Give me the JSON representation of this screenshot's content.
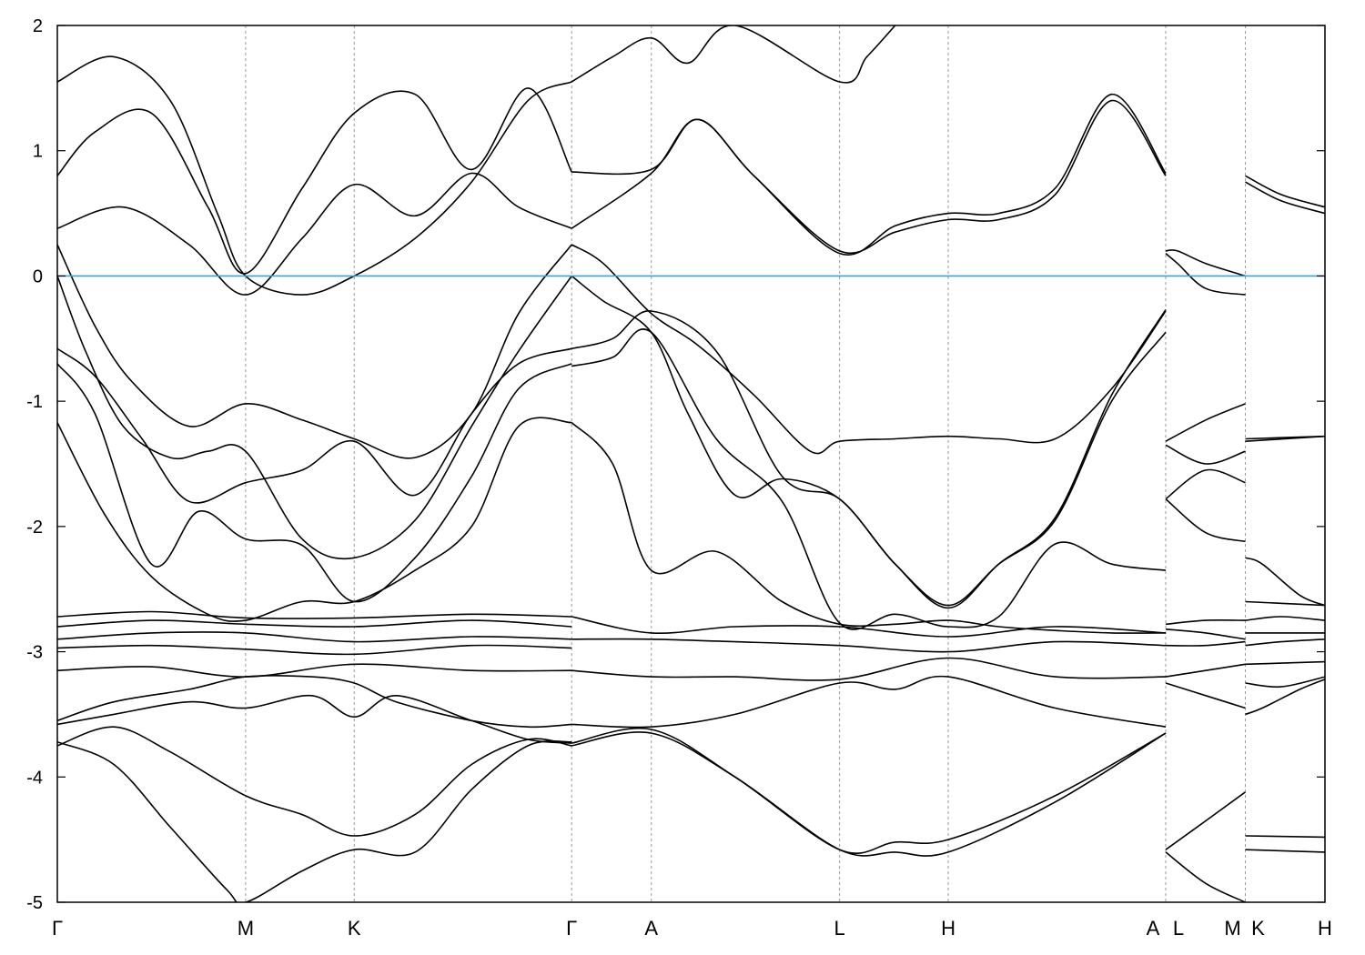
{
  "chart_data": {
    "type": "line",
    "title": "",
    "xlabel": "",
    "ylabel": "",
    "ylim": [
      -5,
      2
    ],
    "yticks": [
      2,
      1,
      0,
      -1,
      -2,
      -3,
      -4,
      -5
    ],
    "grid": "vertical dashed lines at high-symmetry points",
    "fermi_level": 0,
    "fermi_color": "#3aa6c9",
    "band_color": "#000000",
    "x_points": [
      {
        "label": "Γ",
        "x": 0
      },
      {
        "label": "M",
        "x": 1.0
      },
      {
        "label": "K",
        "x": 1.577
      },
      {
        "label": "Γ",
        "x": 2.732
      },
      {
        "label": "A",
        "x": 3.155
      },
      {
        "label": "L",
        "x": 4.155
      },
      {
        "label": "H",
        "x": 4.732
      },
      {
        "label": "A",
        "x": 5.887
      },
      {
        "label": "L",
        "x": 5.887
      },
      {
        "label": "M",
        "x": 6.31
      },
      {
        "label": "K",
        "x": 6.31
      },
      {
        "label": "H",
        "x": 6.733
      }
    ],
    "x_tick_labels": [
      "Γ",
      "M",
      "K",
      "Γ",
      "A",
      "L",
      "H",
      "A",
      "L",
      "M",
      "K",
      "H"
    ],
    "series": [
      {
        "x": [
          0,
          0.3,
          0.6,
          0.85,
          1.0,
          1.3,
          1.577,
          1.9,
          2.2,
          2.5,
          2.732
        ],
        "values": [
          1.55,
          1.75,
          1.4,
          0.5,
          0.0,
          -0.15,
          0.0,
          0.3,
          0.75,
          1.4,
          1.55
        ]
      },
      {
        "x": [
          0,
          0.2,
          0.5,
          0.8,
          1.0,
          1.3,
          1.577,
          1.9,
          2.2,
          2.5,
          2.732
        ],
        "values": [
          0.8,
          1.15,
          1.3,
          0.55,
          0.02,
          0.7,
          1.3,
          1.45,
          0.85,
          1.5,
          0.83
        ]
      },
      {
        "x": [
          0,
          0.35,
          0.7,
          1.0,
          1.3,
          1.577,
          1.9,
          2.2,
          2.45,
          2.732
        ],
        "values": [
          0.38,
          0.55,
          0.25,
          -0.15,
          0.3,
          0.73,
          0.48,
          0.82,
          0.55,
          0.38
        ]
      },
      {
        "x": [
          0,
          0.2,
          0.4,
          0.7,
          1.0,
          1.3,
          1.577,
          1.9,
          2.2,
          2.45,
          2.732
        ],
        "values": [
          0.25,
          -0.4,
          -0.85,
          -1.2,
          -1.02,
          -1.15,
          -1.3,
          -1.45,
          -1.1,
          -0.3,
          0.25
        ]
      },
      {
        "x": [
          0,
          0.15,
          0.35,
          0.6,
          0.8,
          1.0,
          1.3,
          1.577,
          1.9,
          2.2,
          2.45,
          2.732
        ],
        "values": [
          0.0,
          -0.6,
          -1.2,
          -1.45,
          -1.4,
          -1.4,
          -2.1,
          -2.25,
          -1.95,
          -1.2,
          -0.6,
          0.0
        ]
      },
      {
        "x": [
          0,
          0.2,
          0.45,
          0.7,
          1.0,
          1.3,
          1.577,
          1.9,
          2.2,
          2.45,
          2.732
        ],
        "values": [
          -0.58,
          -0.8,
          -1.3,
          -1.8,
          -1.65,
          -1.55,
          -1.32,
          -1.75,
          -1.1,
          -0.7,
          -0.58
        ]
      },
      {
        "x": [
          0,
          0.2,
          0.5,
          0.75,
          1.0,
          1.3,
          1.577,
          1.9,
          2.2,
          2.45,
          2.732
        ],
        "values": [
          -0.7,
          -1.1,
          -2.3,
          -1.88,
          -2.1,
          -2.15,
          -2.6,
          -2.25,
          -1.6,
          -0.9,
          -0.7
        ]
      },
      {
        "x": [
          0,
          0.25,
          0.5,
          0.8,
          1.0,
          1.3,
          1.577,
          1.9,
          2.2,
          2.45,
          2.732
        ],
        "values": [
          -1.17,
          -1.9,
          -2.4,
          -2.7,
          -2.75,
          -2.6,
          -2.6,
          -2.35,
          -2.0,
          -1.2,
          -1.17
        ]
      },
      {
        "x": [
          0,
          0.5,
          1.0,
          1.577,
          2.2,
          2.732
        ],
        "values": [
          -2.72,
          -2.68,
          -2.73,
          -2.73,
          -2.7,
          -2.72
        ]
      },
      {
        "x": [
          0,
          0.5,
          1.0,
          1.577,
          2.2,
          2.732
        ],
        "values": [
          -2.8,
          -2.75,
          -2.78,
          -2.8,
          -2.75,
          -2.8
        ]
      },
      {
        "x": [
          0,
          0.5,
          1.0,
          1.577,
          2.2,
          2.732
        ],
        "values": [
          -2.9,
          -2.85,
          -2.85,
          -2.92,
          -2.88,
          -2.9
        ]
      },
      {
        "x": [
          0,
          0.5,
          1.0,
          1.577,
          2.2,
          2.732
        ],
        "values": [
          -2.97,
          -2.95,
          -2.98,
          -3.02,
          -2.95,
          -2.97
        ]
      },
      {
        "x": [
          0,
          0.5,
          1.0,
          1.577,
          2.2,
          2.732
        ],
        "values": [
          -3.15,
          -3.12,
          -3.2,
          -3.1,
          -3.15,
          -3.15
        ]
      },
      {
        "x": [
          0,
          0.3,
          0.7,
          1.0,
          1.35,
          1.577,
          1.8,
          2.2,
          2.5,
          2.732
        ],
        "values": [
          -3.55,
          -3.4,
          -3.3,
          -3.2,
          -3.2,
          -3.25,
          -3.4,
          -3.55,
          -3.6,
          -3.58
        ]
      },
      {
        "x": [
          0,
          0.3,
          0.7,
          1.0,
          1.35,
          1.577,
          1.8,
          2.2,
          2.5,
          2.732
        ],
        "values": [
          -3.58,
          -3.5,
          -3.4,
          -3.45,
          -3.35,
          -3.52,
          -3.35,
          -3.55,
          -3.7,
          -3.73
        ]
      },
      {
        "x": [
          0,
          0.3,
          0.6,
          1.0,
          1.3,
          1.577,
          1.9,
          2.2,
          2.5,
          2.732
        ],
        "values": [
          -3.75,
          -3.6,
          -3.8,
          -4.15,
          -4.3,
          -4.47,
          -4.3,
          -3.9,
          -3.7,
          -3.75
        ]
      },
      {
        "x": [
          0,
          0.3,
          0.6,
          0.9,
          1.0,
          1.3,
          1.577,
          1.9,
          2.2,
          2.5,
          2.732
        ],
        "values": [
          -3.72,
          -3.9,
          -4.4,
          -4.9,
          -5.0,
          -4.75,
          -4.58,
          -4.6,
          -4.1,
          -3.75,
          -3.72
        ]
      },
      {
        "x": [
          2.732,
          2.9,
          3.155,
          3.4,
          3.7,
          4.0,
          4.155,
          4.45,
          4.732,
          5.0,
          5.3,
          5.6,
          5.887
        ],
        "values": [
          0.25,
          0.1,
          -0.3,
          -0.55,
          -0.95,
          -1.4,
          -1.32,
          -1.3,
          -1.28,
          -1.3,
          -1.3,
          -0.9,
          -0.28
        ]
      },
      {
        "x": [
          2.732,
          2.9,
          3.155,
          3.35,
          3.6,
          3.85,
          4.155,
          4.45,
          4.732,
          5.0,
          5.3,
          5.6,
          5.887
        ],
        "values": [
          0.0,
          -0.2,
          -0.45,
          -1.1,
          -1.75,
          -1.62,
          -1.78,
          -2.3,
          -2.63,
          -2.3,
          -1.95,
          -1.0,
          -0.45
        ]
      },
      {
        "x": [
          2.732,
          2.95,
          3.155,
          3.5,
          3.85,
          4.155,
          4.45,
          4.732,
          5.0,
          5.3,
          5.6,
          5.887
        ],
        "values": [
          -0.58,
          -0.5,
          -0.28,
          -0.6,
          -1.6,
          -1.78,
          -2.3,
          -2.65,
          -2.3,
          -1.93,
          -0.95,
          -0.27
        ]
      },
      {
        "x": [
          2.732,
          2.95,
          3.155,
          3.5,
          3.85,
          4.155,
          4.45,
          4.732,
          5.0,
          5.3,
          5.6,
          5.887
        ],
        "values": [
          -0.72,
          -0.65,
          -0.45,
          -1.3,
          -1.8,
          -2.77,
          -2.7,
          -2.8,
          -2.72,
          -2.14,
          -2.3,
          -2.35
        ]
      },
      {
        "x": [
          2.732,
          2.95,
          3.155,
          3.5,
          3.85,
          4.155,
          4.45,
          4.732,
          5.0,
          5.3,
          5.6,
          5.887
        ],
        "values": [
          -1.17,
          -1.5,
          -2.35,
          -2.2,
          -2.6,
          -2.78,
          -2.78,
          -2.75,
          -2.8,
          -2.83,
          -2.85,
          -2.85
        ]
      },
      {
        "x": [
          2.732,
          3.155,
          3.6,
          4.155,
          4.732,
          5.3,
          5.887
        ],
        "values": [
          -2.72,
          -2.85,
          -2.8,
          -2.8,
          -2.88,
          -2.8,
          -2.85
        ]
      },
      {
        "x": [
          2.732,
          3.155,
          3.6,
          4.155,
          4.732,
          5.3,
          5.887
        ],
        "values": [
          -2.9,
          -2.9,
          -2.92,
          -2.95,
          -3.0,
          -2.92,
          -2.95
        ]
      },
      {
        "x": [
          2.732,
          3.155,
          3.6,
          4.155,
          4.732,
          5.3,
          5.887
        ],
        "values": [
          -3.15,
          -3.2,
          -3.2,
          -3.22,
          -3.05,
          -3.2,
          -3.2
        ]
      },
      {
        "x": [
          2.732,
          3.155,
          3.6,
          4.155,
          4.45,
          4.732,
          5.3,
          5.887
        ],
        "values": [
          -3.58,
          -3.6,
          -3.5,
          -3.25,
          -3.3,
          -3.2,
          -3.45,
          -3.6
        ]
      },
      {
        "x": [
          2.732,
          3.155,
          3.6,
          4.155,
          4.45,
          4.732,
          5.3,
          5.887
        ],
        "values": [
          -3.73,
          -3.62,
          -4.0,
          -4.58,
          -4.52,
          -4.5,
          -4.15,
          -3.65
        ]
      },
      {
        "x": [
          2.732,
          3.155,
          3.6,
          4.155,
          4.45,
          4.732,
          5.3,
          5.887
        ],
        "values": [
          -3.75,
          -3.65,
          -4.0,
          -4.58,
          -4.6,
          -4.6,
          -4.2,
          -3.65
        ]
      },
      {
        "x": [
          2.732,
          3.155,
          3.4,
          3.7,
          4.155,
          4.45,
          4.732,
          5.0,
          5.3,
          5.6,
          5.887
        ],
        "values": [
          0.38,
          0.82,
          1.25,
          0.8,
          0.2,
          0.35,
          0.45,
          0.45,
          0.65,
          1.4,
          0.8
        ]
      },
      {
        "x": [
          2.732,
          3.155,
          3.4,
          3.7,
          4.155,
          4.45,
          4.732,
          5.0,
          5.3,
          5.6,
          5.887
        ],
        "values": [
          0.83,
          0.85,
          1.25,
          0.8,
          0.18,
          0.4,
          0.5,
          0.5,
          0.7,
          1.45,
          0.82
        ]
      },
      {
        "x": [
          2.732,
          2.95,
          3.155,
          3.35,
          3.6,
          4.155,
          4.3,
          4.45
        ],
        "values": [
          1.55,
          1.75,
          1.9,
          1.7,
          2.0,
          1.55,
          1.75,
          2.0
        ]
      },
      {
        "x": [
          5.887,
          5.95,
          6.1,
          6.31
        ],
        "values": [
          0.2,
          0.2,
          0.1,
          0.0
        ]
      },
      {
        "x": [
          5.887,
          5.95,
          6.1,
          6.31
        ],
        "values": [
          0.18,
          0.1,
          -0.1,
          -0.15
        ]
      },
      {
        "x": [
          5.887,
          6.1,
          6.31
        ],
        "values": [
          -1.32,
          -1.15,
          -1.02
        ]
      },
      {
        "x": [
          5.887,
          6.1,
          6.31
        ],
        "values": [
          -1.35,
          -1.5,
          -1.4
        ]
      },
      {
        "x": [
          5.887,
          6.1,
          6.31
        ],
        "values": [
          -1.78,
          -1.55,
          -1.65
        ]
      },
      {
        "x": [
          5.887,
          6.1,
          6.31
        ],
        "values": [
          -1.78,
          -2.05,
          -2.12
        ]
      },
      {
        "x": [
          5.887,
          6.1,
          6.31
        ],
        "values": [
          -2.78,
          -2.75,
          -2.75
        ]
      },
      {
        "x": [
          5.887,
          6.1,
          6.31
        ],
        "values": [
          -2.82,
          -2.85,
          -2.9
        ]
      },
      {
        "x": [
          5.887,
          6.1,
          6.31
        ],
        "values": [
          -2.95,
          -2.95,
          -2.92
        ]
      },
      {
        "x": [
          5.887,
          6.1,
          6.31
        ],
        "values": [
          -3.2,
          -3.15,
          -3.1
        ]
      },
      {
        "x": [
          5.887,
          6.1,
          6.31
        ],
        "values": [
          -3.25,
          -3.35,
          -3.45
        ]
      },
      {
        "x": [
          5.887,
          6.1,
          6.31
        ],
        "values": [
          -4.58,
          -4.35,
          -4.12
        ]
      },
      {
        "x": [
          5.887,
          6.1,
          6.31
        ],
        "values": [
          -4.6,
          -4.85,
          -5.0
        ]
      },
      {
        "x": [
          6.31,
          6.5,
          6.733
        ],
        "values": [
          0.8,
          0.65,
          0.55
        ]
      },
      {
        "x": [
          6.31,
          6.5,
          6.733
        ],
        "values": [
          0.75,
          0.6,
          0.5
        ]
      },
      {
        "x": [
          6.31,
          6.733
        ],
        "values": [
          -1.3,
          -1.28
        ]
      },
      {
        "x": [
          6.31,
          6.733
        ],
        "values": [
          -1.32,
          -1.28
        ]
      },
      {
        "x": [
          6.31,
          6.4,
          6.6,
          6.733
        ],
        "values": [
          -2.25,
          -2.3,
          -2.55,
          -2.63
        ]
      },
      {
        "x": [
          6.31,
          6.733
        ],
        "values": [
          -2.6,
          -2.63
        ]
      },
      {
        "x": [
          6.31,
          6.5,
          6.733
        ],
        "values": [
          -2.75,
          -2.72,
          -2.75
        ]
      },
      {
        "x": [
          6.31,
          6.5,
          6.733
        ],
        "values": [
          -2.85,
          -2.85,
          -2.85
        ]
      },
      {
        "x": [
          6.31,
          6.5,
          6.733
        ],
        "values": [
          -2.95,
          -2.92,
          -2.9
        ]
      },
      {
        "x": [
          6.31,
          6.733
        ],
        "values": [
          -3.1,
          -3.08
        ]
      },
      {
        "x": [
          6.31,
          6.5,
          6.733
        ],
        "values": [
          -3.25,
          -3.28,
          -3.2
        ]
      },
      {
        "x": [
          6.31,
          6.4,
          6.6,
          6.733
        ],
        "values": [
          -3.5,
          -3.45,
          -3.3,
          -3.22
        ]
      },
      {
        "x": [
          6.31,
          6.733
        ],
        "values": [
          -4.47,
          -4.48
        ]
      },
      {
        "x": [
          6.31,
          6.733
        ],
        "values": [
          -4.58,
          -4.6
        ]
      }
    ],
    "legend": "none"
  }
}
